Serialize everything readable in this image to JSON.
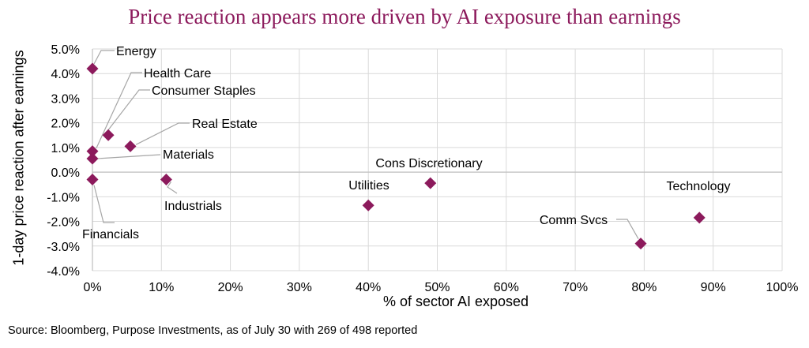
{
  "chart_data": {
    "type": "scatter",
    "title": "Price reaction appears more driven by AI exposure than earnings",
    "xlabel": "% of sector AI exposed",
    "ylabel": "1-day price reaction after earnings",
    "xlim": [
      0,
      100
    ],
    "ylim": [
      -4.0,
      5.0
    ],
    "xticks": [
      "0%",
      "10%",
      "20%",
      "30%",
      "40%",
      "50%",
      "60%",
      "70%",
      "80%",
      "90%",
      "100%"
    ],
    "yticks": [
      "5.0%",
      "4.0%",
      "3.0%",
      "2.0%",
      "1.0%",
      "0.0%",
      "-1.0%",
      "-2.0%",
      "-3.0%",
      "-4.0%"
    ],
    "grid": true,
    "marker_color": "#8c1a5c",
    "points": [
      {
        "label": "Energy",
        "x": 0.0,
        "y": 4.2
      },
      {
        "label": "Health Care",
        "x": 2.3,
        "y": 1.5
      },
      {
        "label": "Consumer Staples",
        "x": 0.0,
        "y": 0.85
      },
      {
        "label": "Real Estate",
        "x": 5.5,
        "y": 1.05
      },
      {
        "label": "Materials",
        "x": 0.0,
        "y": 0.55
      },
      {
        "label": "Financials",
        "x": 0.0,
        "y": -0.3
      },
      {
        "label": "Industrials",
        "x": 10.7,
        "y": -0.3
      },
      {
        "label": "Utilities",
        "x": 40.0,
        "y": -1.35
      },
      {
        "label": "Cons Discretionary",
        "x": 49.0,
        "y": -0.45
      },
      {
        "label": "Comm Svcs",
        "x": 79.5,
        "y": -2.9
      },
      {
        "label": "Technology",
        "x": 88.0,
        "y": -1.85
      }
    ]
  },
  "footer": {
    "source": "Source: Bloomberg, Purpose Investments, as of July 30 with 269 of 498 reported"
  }
}
